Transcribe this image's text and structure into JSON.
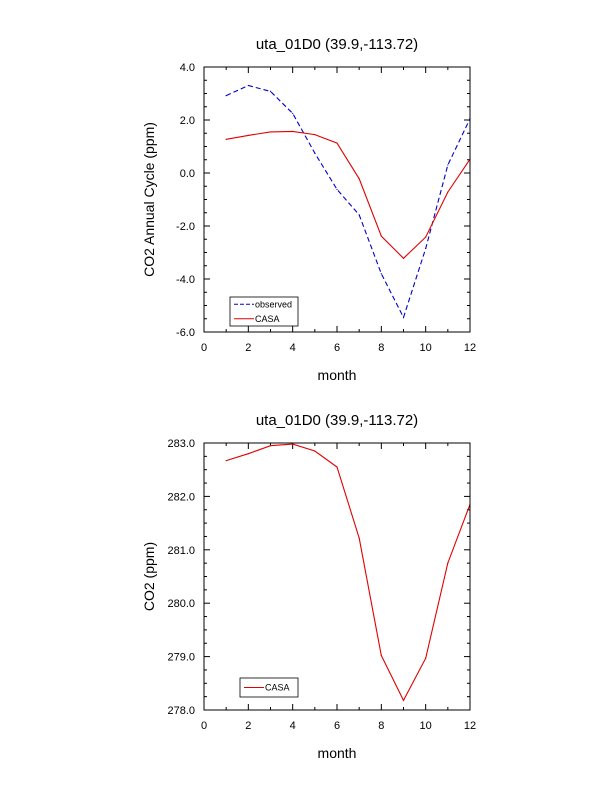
{
  "chart_data": [
    {
      "type": "line",
      "title": "uta_01D0 (39.9,-113.72)",
      "xlabel": "month",
      "ylabel": "CO2 Annual Cycle (ppm)",
      "xlim": [
        0,
        12
      ],
      "ylim": [
        -6.0,
        4.0
      ],
      "xticks": [
        0,
        2,
        4,
        6,
        8,
        10,
        12
      ],
      "xtick_labels": [
        "0",
        "2",
        "4",
        "6",
        "8",
        "10",
        "12"
      ],
      "yticks": [
        -6.0,
        -4.0,
        -2.0,
        0.0,
        2.0,
        4.0
      ],
      "ytick_labels": [
        "-6.0",
        "-4.0",
        "-2.0",
        "0.0",
        "2.0",
        "4.0"
      ],
      "grid": false,
      "legend_position": "bottom-left",
      "x": [
        1,
        2,
        3,
        4,
        5,
        6,
        7,
        8,
        9,
        10,
        11,
        12
      ],
      "series": [
        {
          "name": "observed",
          "color": "#0000cc",
          "dash": true,
          "values": [
            2.92,
            3.3,
            3.08,
            2.25,
            0.75,
            -0.62,
            -1.58,
            -3.8,
            -5.45,
            -2.85,
            0.3,
            2.05
          ]
        },
        {
          "name": "CASA",
          "color": "#e00000",
          "dash": false,
          "values": [
            1.27,
            1.42,
            1.55,
            1.57,
            1.45,
            1.13,
            -0.22,
            -2.38,
            -3.22,
            -2.42,
            -0.72,
            0.52
          ]
        }
      ]
    },
    {
      "type": "line",
      "title": "uta_01D0 (39.9,-113.72)",
      "xlabel": "month",
      "ylabel": "CO2 (ppm)",
      "xlim": [
        0,
        12
      ],
      "ylim": [
        278.0,
        283.0
      ],
      "xticks": [
        0,
        2,
        4,
        6,
        8,
        10,
        12
      ],
      "xtick_labels": [
        "0",
        "2",
        "4",
        "6",
        "8",
        "10",
        "12"
      ],
      "yticks": [
        278.0,
        279.0,
        280.0,
        281.0,
        282.0,
        283.0
      ],
      "ytick_labels": [
        "278.0",
        "279.0",
        "280.0",
        "281.0",
        "282.0",
        "283.0"
      ],
      "grid": false,
      "legend_position": "bottom-left",
      "x": [
        1,
        2,
        3,
        4,
        5,
        6,
        7,
        8,
        9,
        10,
        11,
        12
      ],
      "series": [
        {
          "name": "CASA",
          "color": "#e00000",
          "dash": false,
          "values": [
            282.67,
            282.8,
            282.95,
            282.98,
            282.85,
            282.55,
            281.22,
            279.02,
            278.18,
            278.97,
            280.75,
            281.85
          ]
        }
      ]
    }
  ]
}
